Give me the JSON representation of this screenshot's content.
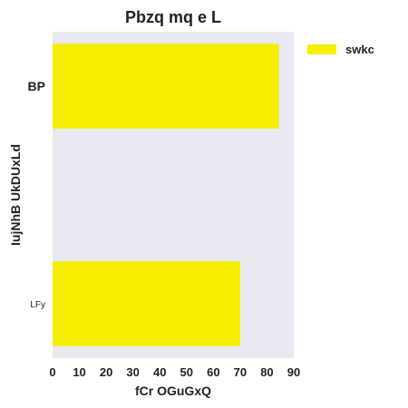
{
  "chart_data": {
    "type": "bar",
    "orientation": "horizontal",
    "title": "Pbzq  mq e  L",
    "xlabel": "fCr OGuGxQ",
    "ylabel": "IujNhB UkDUxLd",
    "categories": [
      "BP",
      "",
      "LFy"
    ],
    "series": [
      {
        "name": "swkc",
        "color": "#f5ee00",
        "values": [
          84.5,
          null,
          70
        ]
      }
    ],
    "xlim": [
      0,
      90
    ],
    "xticks": [
      0,
      10,
      20,
      30,
      40,
      50,
      60,
      70,
      80,
      90
    ],
    "grid": false,
    "plot_background": "#e9e9f1",
    "legend_position": "top-right"
  }
}
